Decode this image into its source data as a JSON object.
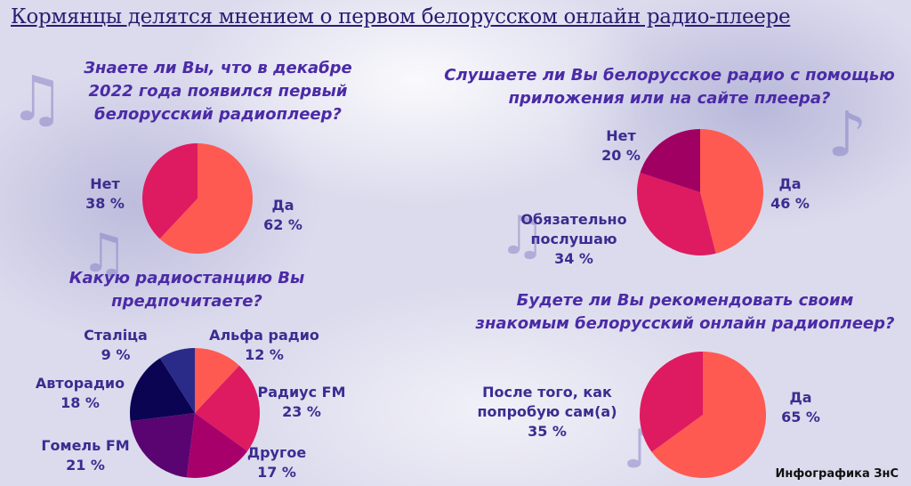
{
  "title": "Кормянцы делятся мнением о первом белорусском онлайн радио-плеере",
  "credit": "Инфографика ЗнС",
  "chart_data": [
    {
      "type": "pie",
      "title": [
        "Знаете ли Вы, что в декабре",
        "2022 года появился первый",
        "белорусский радиоплеер?"
      ],
      "slices": [
        {
          "label": "Да",
          "value": 62,
          "value_text": "62 %",
          "color": "#fe5a52"
        },
        {
          "label": "Нет",
          "value": 38,
          "value_text": "38 %",
          "color": "#de1a60"
        }
      ]
    },
    {
      "type": "pie",
      "title": [
        "Слушаете ли Вы белорусское радио с помощью",
        "приложения или на сайте плеера?"
      ],
      "slices": [
        {
          "label": "Да",
          "value": 46,
          "value_text": "46 %",
          "color": "#fe5a52"
        },
        {
          "label": "Обязательно послушаю",
          "label_lines": [
            "Обязательно",
            "послушаю"
          ],
          "value": 34,
          "value_text": "34 %",
          "color": "#de1a60"
        },
        {
          "label": "Нет",
          "value": 20,
          "value_text": "20 %",
          "color": "#a00062"
        }
      ]
    },
    {
      "type": "pie",
      "title": [
        "Какую радиостанцию Вы",
        "предпочитаете?"
      ],
      "slices": [
        {
          "label": "Альфа радио",
          "value": 12,
          "value_text": "12 %",
          "color": "#fe5a52"
        },
        {
          "label": "Радиус FM",
          "value": 23,
          "value_text": "23 %",
          "color": "#de1a60"
        },
        {
          "label": "Другое",
          "value": 17,
          "value_text": "17 %",
          "color": "#a8006a"
        },
        {
          "label": "Гомель FM",
          "value": 21,
          "value_text": "21 %",
          "color": "#5a0472"
        },
        {
          "label": "Авторадио",
          "value": 18,
          "value_text": "18 %",
          "color": "#0b0452"
        },
        {
          "label": "Сталіца",
          "value": 9,
          "value_text": "9 %",
          "color": "#2a2a88"
        }
      ]
    },
    {
      "type": "pie",
      "title": [
        "Будете ли Вы рекомендовать своим",
        "знакомым белорусский онлайн радиоплеер?"
      ],
      "slices": [
        {
          "label": "Да",
          "value": 65,
          "value_text": "65 %",
          "color": "#fe5a52"
        },
        {
          "label": "После того, как попробую сам(а)",
          "label_lines": [
            "После того, как",
            "попробую сам(а)"
          ],
          "value": 35,
          "value_text": "35 %",
          "color": "#de1a60"
        }
      ]
    }
  ]
}
